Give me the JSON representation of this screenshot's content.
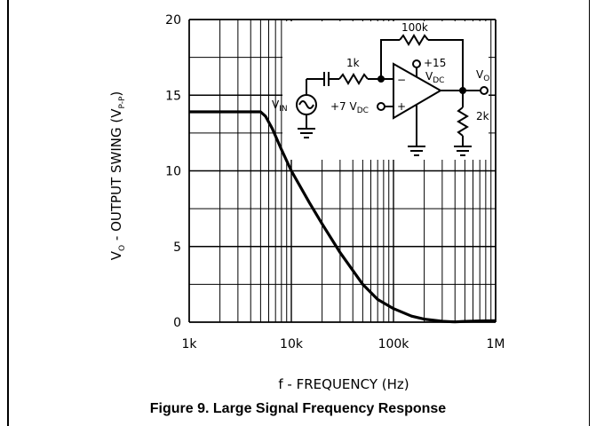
{
  "caption": "Figure 9. Large Signal Frequency Response",
  "chart_data": {
    "type": "line",
    "xscale": "log",
    "xlim": [
      1000,
      1000000
    ],
    "ylim": [
      0,
      20
    ],
    "x_ticks": [
      1000,
      10000,
      100000,
      1000000
    ],
    "x_tick_labels": [
      "1k",
      "10k",
      "100k",
      "1M"
    ],
    "y_ticks": [
      0,
      5,
      10,
      15,
      20
    ],
    "y_tick_labels": [
      "0",
      "5",
      "10",
      "15",
      "20"
    ],
    "xlabel": "f - FREQUENCY (Hz)",
    "ylabel": "V",
    "ylabel_sub": "O",
    "ylabel_rest": " - OUTPUT SWING (V",
    "ylabel_sub2": "P-P",
    "ylabel_end": ")",
    "grid": true,
    "x": [
      1000,
      2000,
      4000,
      5000,
      5600,
      6500,
      8000,
      10000,
      15000,
      20000,
      30000,
      50000,
      70000,
      100000,
      150000,
      200000,
      300000,
      400000,
      500000,
      700000,
      1000000
    ],
    "y": [
      13.9,
      13.9,
      13.9,
      13.9,
      13.6,
      12.8,
      11.4,
      10.0,
      7.9,
      6.5,
      4.6,
      2.5,
      1.5,
      0.9,
      0.4,
      0.2,
      0.06,
      0.02,
      0.05,
      0.08,
      0.1
    ],
    "inset_circuit": {
      "labels": {
        "r_feedback": "100k",
        "r_input": "1k",
        "supply": "+15",
        "supply_unit": "V",
        "supply_unit_sub": "DC",
        "bias": "+7 V",
        "bias_sub": "DC",
        "source": "V",
        "source_sub": "IN",
        "output": "V",
        "output_sub": "O",
        "r_load": "2k",
        "inv": "−",
        "noninv": "+"
      }
    }
  }
}
